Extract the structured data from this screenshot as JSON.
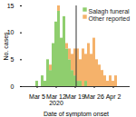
{
  "chart_data": {
    "type": "bar",
    "stacked": true,
    "x_label": "Date of symptom onset",
    "y_label": "No. cases",
    "categories": [
      "Mar 5",
      null,
      null,
      null,
      null,
      null,
      null,
      "Mar 12\n2020",
      null,
      null,
      null,
      null,
      null,
      null,
      "Mar 19",
      null,
      null,
      null,
      null,
      null,
      null,
      "Mar 26",
      null,
      null,
      null,
      null,
      null,
      null,
      "Apr 2",
      null
    ],
    "series": [
      {
        "name": "Salagh funeral",
        "color": "#8fce6e",
        "values": [
          1,
          0,
          2,
          1,
          5,
          3,
          8,
          12,
          14,
          9,
          13,
          7,
          5,
          3,
          2,
          1,
          1,
          0,
          1,
          0,
          0,
          0,
          0,
          0,
          0,
          0,
          0,
          0,
          0,
          0
        ]
      },
      {
        "name": "Other reported",
        "color": "#f5b26b",
        "values": [
          0,
          0,
          0,
          0,
          0,
          1,
          0,
          0,
          1,
          0,
          0,
          1,
          2,
          3,
          5,
          6,
          4,
          7,
          5,
          8,
          6,
          9,
          5,
          4,
          3,
          2,
          1,
          2,
          1,
          2
        ]
      }
    ],
    "ylim": [
      0,
      15
    ],
    "yticks": [
      0,
      5,
      10,
      15
    ],
    "legend": "top-right"
  }
}
